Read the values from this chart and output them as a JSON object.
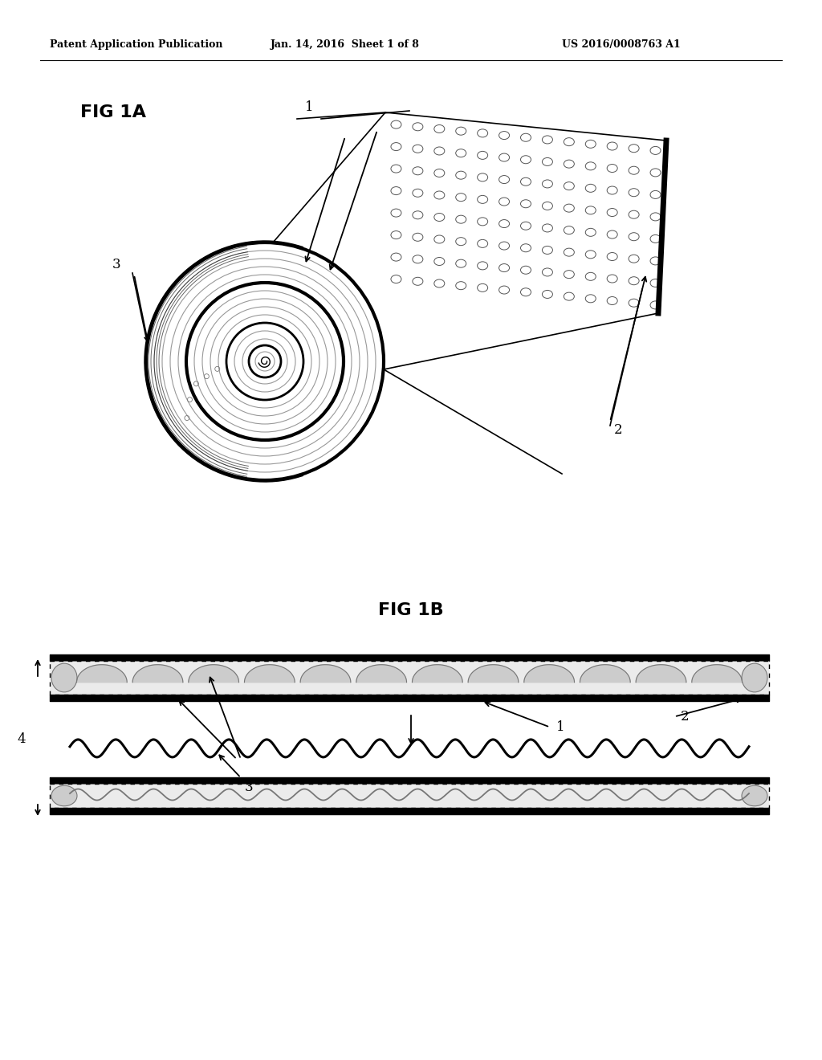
{
  "header_left": "Patent Application Publication",
  "header_mid": "Jan. 14, 2016  Sheet 1 of 8",
  "header_right": "US 2016/0008763 A1",
  "fig1a_label": "FIG 1A",
  "fig1b_label": "FIG 1B",
  "bg_color": "#ffffff",
  "line_color": "#000000",
  "label_1a_1": "1",
  "label_1a_2": "2",
  "label_1a_3": "3",
  "label_1b_1": "1",
  "label_1b_2": "2",
  "label_1b_3": "3",
  "label_1b_4": "4"
}
